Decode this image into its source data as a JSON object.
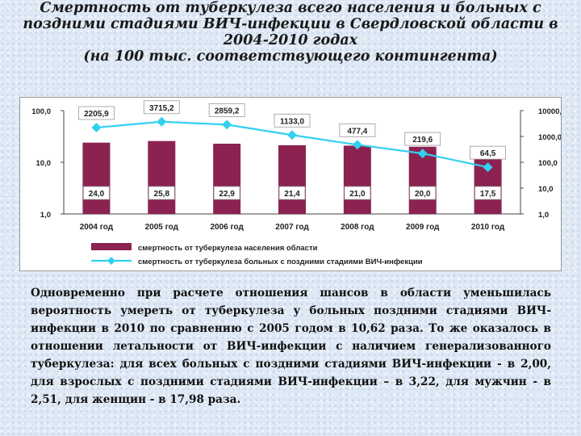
{
  "title": {
    "lines": [
      "Смертность от туберкулеза всего населения и больных с",
      "поздними стадиями ВИЧ-инфекции в Свердловской области в",
      "2004-2010 годах",
      "(на 100 тыс. соответствующего контингента)"
    ]
  },
  "colors": {
    "bar": "#8b2252",
    "line": "#33d0f0"
  },
  "chart_data": {
    "type": "bar",
    "categories": [
      "2004 год",
      "2005 год",
      "2006 год",
      "2007 год",
      "2008 год",
      "2009 год",
      "2010 год"
    ],
    "series": [
      {
        "name": "смертность от туберкулеза населения области",
        "type": "bar",
        "axis": "left",
        "values": [
          24.0,
          25.8,
          22.9,
          21.4,
          21.0,
          20.0,
          17.5
        ],
        "labels": [
          "24,0",
          "25,8",
          "22,9",
          "21,4",
          "21,0",
          "20,0",
          "17,5"
        ]
      },
      {
        "name": "смертность от туберкулеза больных с поздними стадиями ВИЧ-инфекции",
        "type": "line",
        "axis": "right",
        "values": [
          2205.9,
          3715.2,
          2859.2,
          1133.0,
          477.4,
          219.6,
          64.5
        ],
        "labels": [
          "2205,9",
          "3715,2",
          "2859,2",
          "1133,0",
          "477,4",
          "219,6",
          "64,5"
        ]
      }
    ],
    "y_left": {
      "scale": "log",
      "range": [
        1,
        100
      ],
      "ticks": [
        "100,0",
        "10,0",
        "1,0"
      ]
    },
    "y_right": {
      "scale": "log",
      "range": [
        1,
        10000
      ],
      "ticks": [
        "10000,0",
        "1000,0",
        "100,0",
        "10,0",
        "1,0"
      ]
    },
    "legend_position": "bottom"
  },
  "body_text": "Одновременно при расчете отношения шансов в области уменьшилась вероятность умереть от туберкулеза у больных поздними стадиями ВИЧ-инфекции в 2010 по сравнению с 2005 годом в 10,62 раза. То же оказалось в отношении летальности от ВИЧ-инфекции с наличием генерализованного туберкулеза: для всех больных с поздними стадиями ВИЧ-инфекции - в 2,00, для взрослых с поздними стадиями ВИЧ-инфекции – в 3,22, для мужчин - в 2,51, для женщин - в 17,98 раза."
}
